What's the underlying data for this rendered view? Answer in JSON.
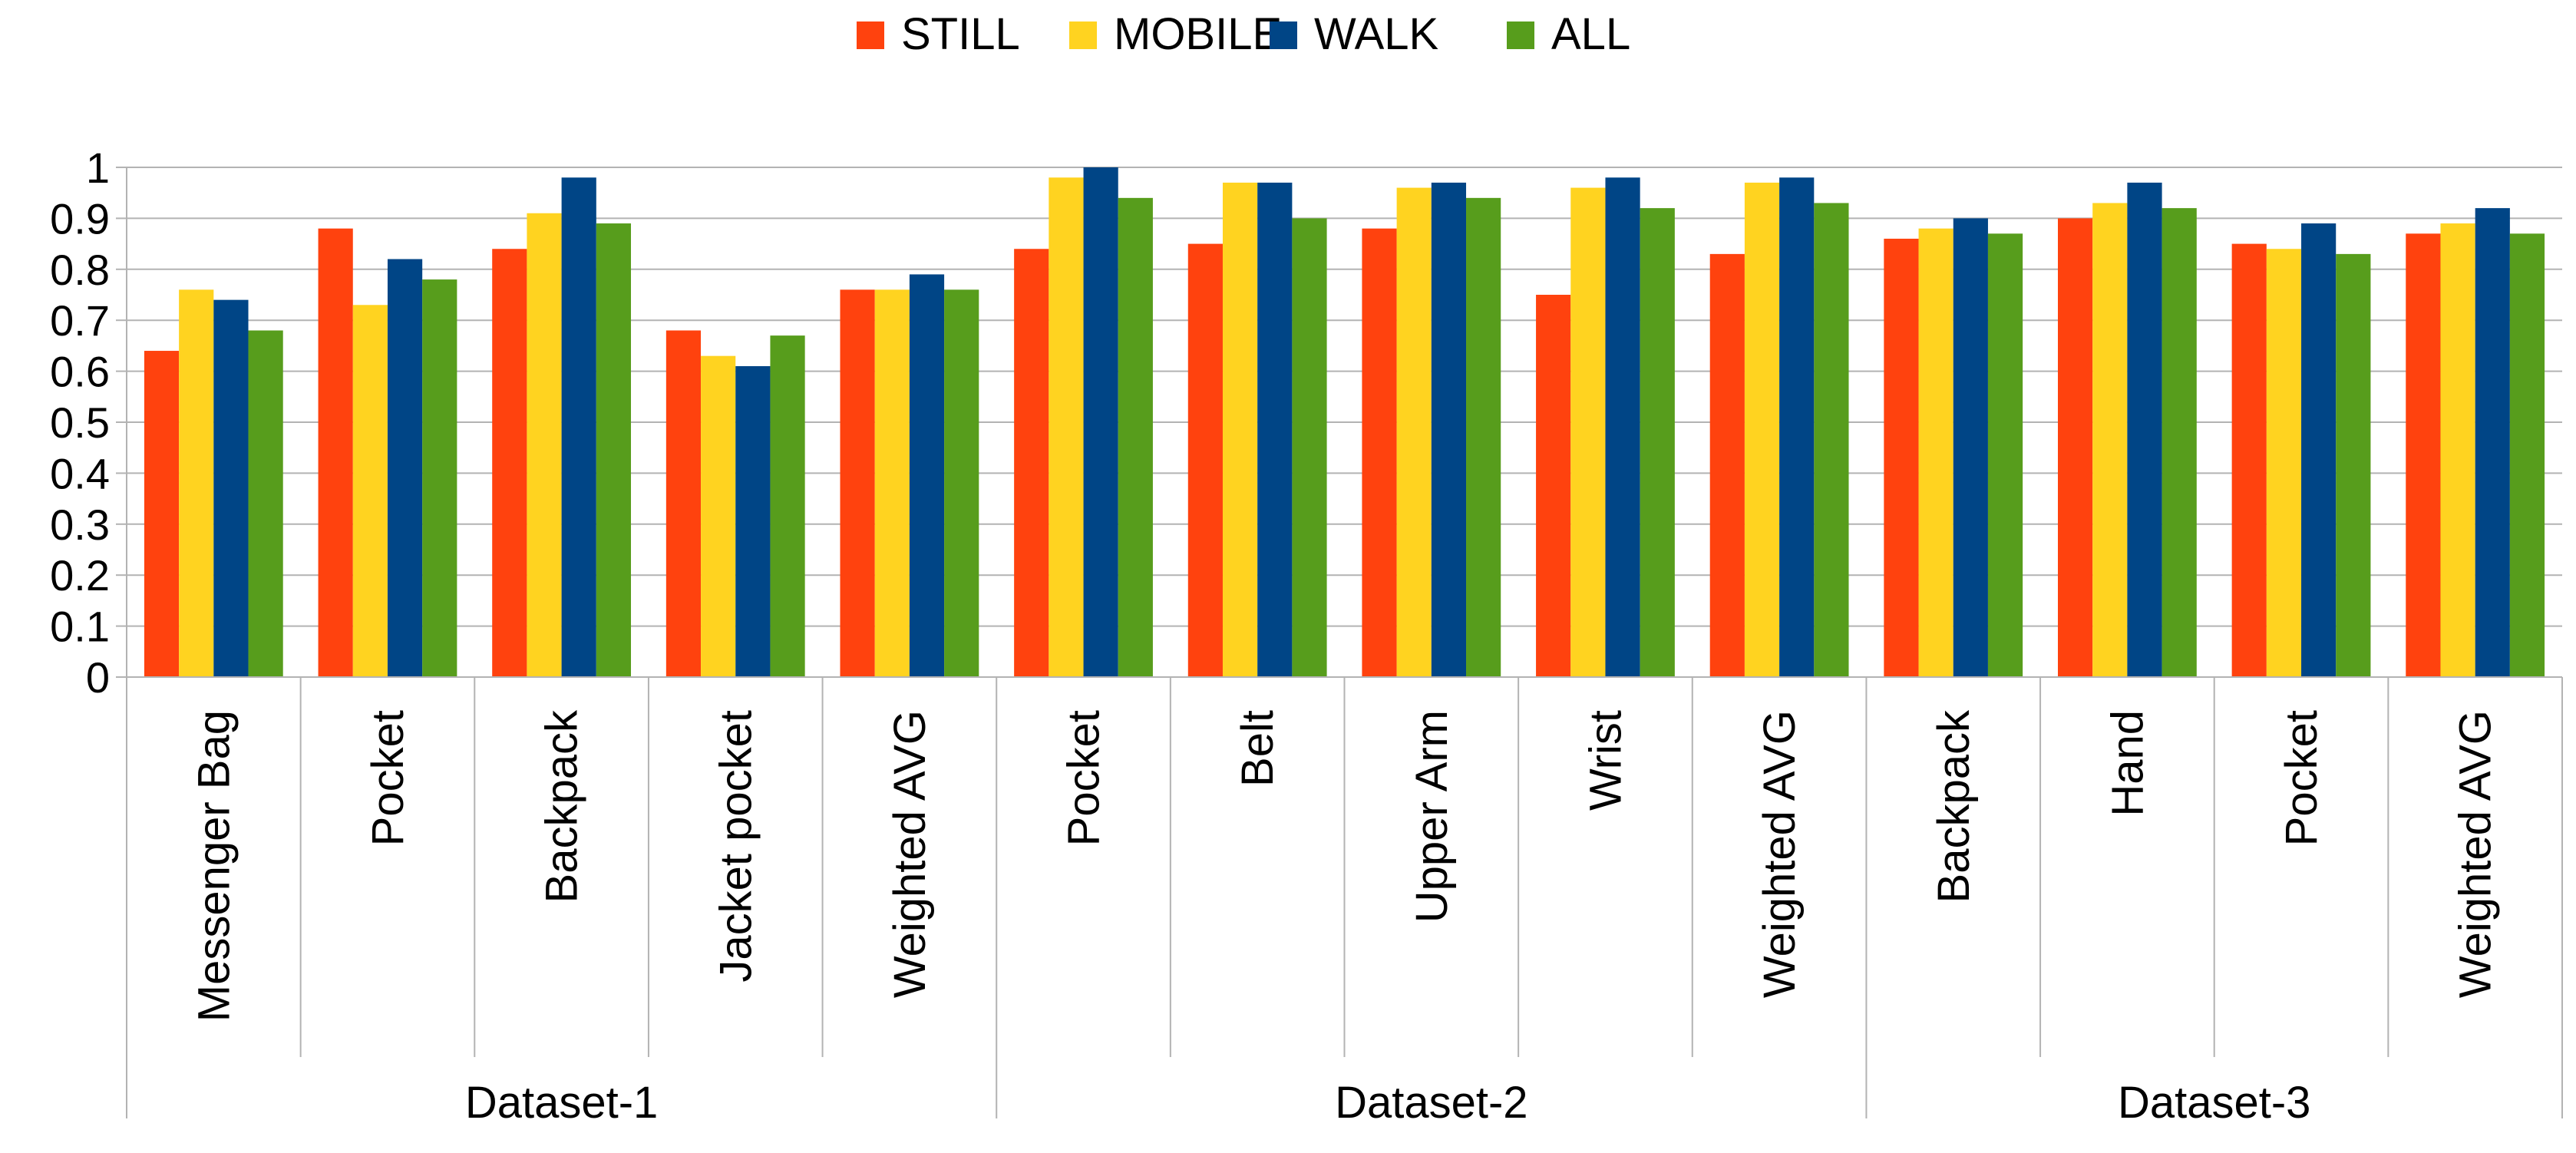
{
  "chart_data": {
    "type": "bar",
    "title": "",
    "xlabel": "",
    "ylabel": "",
    "ylim": [
      0,
      1
    ],
    "yticks": [
      "0",
      "0.1",
      "0.2",
      "0.3",
      "0.4",
      "0.5",
      "0.6",
      "0.7",
      "0.8",
      "0.9",
      "1"
    ],
    "grid": true,
    "legend_position": "top-center",
    "groups": [
      {
        "name": "Dataset-1",
        "categories": [
          "Messenger Bag",
          "Pocket",
          "Backpack",
          "Jacket pocket",
          "Weighted AVG"
        ]
      },
      {
        "name": "Dataset-2",
        "categories": [
          "Pocket",
          "Belt",
          "Upper Arm",
          "Wrist",
          "Weighted AVG"
        ]
      },
      {
        "name": "Dataset-3",
        "categories": [
          "Backpack",
          "Hand",
          "Pocket",
          "Weighted AVG"
        ]
      }
    ],
    "series": [
      {
        "name": "STILL",
        "color": "#ff420e",
        "values": [
          0.64,
          0.88,
          0.84,
          0.68,
          0.76,
          0.84,
          0.85,
          0.88,
          0.75,
          0.83,
          0.86,
          0.9,
          0.85,
          0.87
        ]
      },
      {
        "name": "MOBILE",
        "color": "#ffd320",
        "values": [
          0.76,
          0.73,
          0.91,
          0.63,
          0.76,
          0.98,
          0.97,
          0.96,
          0.96,
          0.97,
          0.88,
          0.93,
          0.84,
          0.89
        ]
      },
      {
        "name": "WALK",
        "color": "#004586",
        "values": [
          0.74,
          0.82,
          0.98,
          0.61,
          0.79,
          1.0,
          0.97,
          0.97,
          0.98,
          0.98,
          0.9,
          0.97,
          0.89,
          0.92
        ]
      },
      {
        "name": "ALL",
        "color": "#579d1c",
        "values": [
          0.68,
          0.78,
          0.89,
          0.67,
          0.76,
          0.94,
          0.9,
          0.94,
          0.92,
          0.93,
          0.87,
          0.92,
          0.83,
          0.87
        ]
      }
    ]
  }
}
